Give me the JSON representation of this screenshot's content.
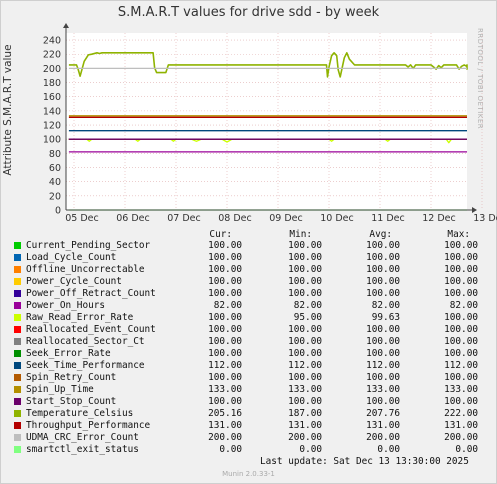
{
  "title": "S.M.A.R.T values for drive sdd - by week",
  "vertical_label": "Attribute S.M.A.R.T value",
  "side_label": "RRDTOOL / TOBI OETIKER",
  "legend_headers": {
    "cur": "Cur:",
    "min": "Min:",
    "avg": "Avg:",
    "max": "Max:"
  },
  "last_update": "Last update:  Sat Dec 13 13:30:00 2025",
  "footer": "Munin 2.0.33-1",
  "legend": [
    {
      "name": "Current_Pending_Sector",
      "color": "#00cc00",
      "cur": "100.00",
      "min": "100.00",
      "avg": "100.00",
      "max": "100.00"
    },
    {
      "name": "Load_Cycle_Count",
      "color": "#0066b3",
      "cur": "100.00",
      "min": "100.00",
      "avg": "100.00",
      "max": "100.00"
    },
    {
      "name": "Offline_Uncorrectable",
      "color": "#ff8000",
      "cur": "100.00",
      "min": "100.00",
      "avg": "100.00",
      "max": "100.00"
    },
    {
      "name": "Power_Cycle_Count",
      "color": "#ffcc00",
      "cur": "100.00",
      "min": "100.00",
      "avg": "100.00",
      "max": "100.00"
    },
    {
      "name": "Power_Off_Retract_Count",
      "color": "#330099",
      "cur": "100.00",
      "min": "100.00",
      "avg": "100.00",
      "max": "100.00"
    },
    {
      "name": "Power_On_Hours",
      "color": "#990099",
      "cur": "82.00",
      "min": "82.00",
      "avg": "82.00",
      "max": "82.00"
    },
    {
      "name": "Raw_Read_Error_Rate",
      "color": "#ccff00",
      "cur": "100.00",
      "min": "95.00",
      "avg": "99.63",
      "max": "100.00"
    },
    {
      "name": "Reallocated_Event_Count",
      "color": "#ff0000",
      "cur": "100.00",
      "min": "100.00",
      "avg": "100.00",
      "max": "100.00"
    },
    {
      "name": "Reallocated_Sector_Ct",
      "color": "#808080",
      "cur": "100.00",
      "min": "100.00",
      "avg": "100.00",
      "max": "100.00"
    },
    {
      "name": "Seek_Error_Rate",
      "color": "#008f00",
      "cur": "100.00",
      "min": "100.00",
      "avg": "100.00",
      "max": "100.00"
    },
    {
      "name": "Seek_Time_Performance",
      "color": "#00487d",
      "cur": "112.00",
      "min": "112.00",
      "avg": "112.00",
      "max": "112.00"
    },
    {
      "name": "Spin_Retry_Count",
      "color": "#b35a00",
      "cur": "100.00",
      "min": "100.00",
      "avg": "100.00",
      "max": "100.00"
    },
    {
      "name": "Spin_Up_Time",
      "color": "#b38f00",
      "cur": "133.00",
      "min": "133.00",
      "avg": "133.00",
      "max": "133.00"
    },
    {
      "name": "Start_Stop_Count",
      "color": "#6b006b",
      "cur": "100.00",
      "min": "100.00",
      "avg": "100.00",
      "max": "100.00"
    },
    {
      "name": "Temperature_Celsius",
      "color": "#8fb300",
      "cur": "205.16",
      "min": "187.00",
      "avg": "207.76",
      "max": "222.00"
    },
    {
      "name": "Throughput_Performance",
      "color": "#b30000",
      "cur": "131.00",
      "min": "131.00",
      "avg": "131.00",
      "max": "131.00"
    },
    {
      "name": "UDMA_CRC_Error_Count",
      "color": "#bebebe",
      "cur": "200.00",
      "min": "200.00",
      "avg": "200.00",
      "max": "200.00"
    },
    {
      "name": "smartctl_exit_status",
      "color": "#80ff80",
      "cur": "0.00",
      "min": "0.00",
      "avg": "0.00",
      "max": "0.00"
    }
  ],
  "chart_data": {
    "type": "line",
    "title": "S.M.A.R.T values for drive sdd - by week",
    "ylabel": "Attribute S.M.A.R.T value",
    "xlabel": "",
    "ylim": [
      0,
      250
    ],
    "yticks": [
      0,
      20,
      40,
      60,
      80,
      100,
      120,
      140,
      160,
      180,
      200,
      220,
      240
    ],
    "xlim": [
      0,
      8.6
    ],
    "xticks": [
      {
        "v": 0.0,
        "label": "05 Dec"
      },
      {
        "v": 1.0,
        "label": "06 Dec"
      },
      {
        "v": 2.0,
        "label": "07 Dec"
      },
      {
        "v": 3.0,
        "label": "08 Dec"
      },
      {
        "v": 4.0,
        "label": "09 Dec"
      },
      {
        "v": 5.0,
        "label": "10 Dec"
      },
      {
        "v": 6.0,
        "label": "11 Dec"
      },
      {
        "v": 7.0,
        "label": "12 Dec"
      },
      {
        "v": 8.0,
        "label": "13 Dec"
      }
    ],
    "grid": true,
    "series": [
      {
        "name": "Current_Pending_Sector",
        "color": "#00cc00",
        "x": [
          -0.1,
          8.55
        ],
        "y": [
          100,
          100
        ]
      },
      {
        "name": "Load_Cycle_Count",
        "color": "#0066b3",
        "x": [
          -0.1,
          8.55
        ],
        "y": [
          100,
          100
        ]
      },
      {
        "name": "Offline_Uncorrectable",
        "color": "#ff8000",
        "x": [
          -0.1,
          8.55
        ],
        "y": [
          100,
          100
        ]
      },
      {
        "name": "Power_Cycle_Count",
        "color": "#ffcc00",
        "x": [
          -0.1,
          8.55
        ],
        "y": [
          100,
          100
        ]
      },
      {
        "name": "Power_Off_Retract_Count",
        "color": "#330099",
        "x": [
          -0.1,
          8.55
        ],
        "y": [
          100,
          100
        ]
      },
      {
        "name": "Power_On_Hours",
        "color": "#990099",
        "x": [
          -0.1,
          8.55
        ],
        "y": [
          82,
          82
        ]
      },
      {
        "name": "Raw_Read_Error_Rate",
        "color": "#ccff00",
        "x": [
          -0.1,
          0.25,
          0.3,
          0.35,
          0.4,
          1.2,
          1.25,
          1.3,
          1.35,
          1.9,
          1.95,
          2.0,
          2.3,
          2.4,
          2.5,
          2.9,
          3.0,
          3.1,
          3.2,
          5.0,
          5.05,
          5.1,
          6.1,
          6.15,
          6.2,
          7.3,
          7.35,
          7.4,
          7.45,
          8.55
        ],
        "y": [
          100,
          100,
          97,
          100,
          100,
          100,
          97,
          100,
          100,
          100,
          97,
          100,
          100,
          97,
          100,
          100,
          96,
          100,
          100,
          100,
          97,
          100,
          100,
          97,
          100,
          100,
          95,
          100,
          100,
          100
        ]
      },
      {
        "name": "Reallocated_Event_Count",
        "color": "#ff0000",
        "x": [
          -0.1,
          8.55
        ],
        "y": [
          100,
          100
        ]
      },
      {
        "name": "Reallocated_Sector_Ct",
        "color": "#808080",
        "x": [
          -0.1,
          8.55
        ],
        "y": [
          100,
          100
        ]
      },
      {
        "name": "Seek_Error_Rate",
        "color": "#008f00",
        "x": [
          -0.1,
          8.55
        ],
        "y": [
          100,
          100
        ]
      },
      {
        "name": "Seek_Time_Performance",
        "color": "#00487d",
        "x": [
          -0.1,
          8.55
        ],
        "y": [
          112,
          112
        ]
      },
      {
        "name": "Spin_Retry_Count",
        "color": "#b35a00",
        "x": [
          -0.1,
          8.55
        ],
        "y": [
          100,
          100
        ]
      },
      {
        "name": "Spin_Up_Time",
        "color": "#b38f00",
        "x": [
          -0.1,
          8.55
        ],
        "y": [
          133,
          133
        ]
      },
      {
        "name": "Start_Stop_Count",
        "color": "#6b006b",
        "x": [
          -0.1,
          8.55
        ],
        "y": [
          100,
          100
        ]
      },
      {
        "name": "Temperature_Celsius",
        "color": "#8fb300",
        "x": [
          -0.1,
          0.05,
          0.08,
          0.12,
          0.2,
          0.28,
          0.35,
          0.45,
          0.5,
          0.55,
          0.6,
          0.7,
          1.55,
          1.58,
          1.62,
          1.65,
          1.75,
          1.8,
          1.85,
          4.95,
          4.97,
          5.0,
          5.05,
          5.1,
          5.15,
          5.18,
          5.22,
          5.3,
          5.35,
          5.4,
          5.5,
          6.5,
          6.55,
          6.6,
          6.65,
          6.7,
          7.0,
          7.05,
          7.1,
          7.15,
          7.2,
          7.25,
          7.3,
          7.5,
          7.55,
          7.6,
          7.65,
          7.7,
          8.0,
          8.1,
          8.15,
          8.3,
          8.35,
          8.4,
          8.55
        ],
        "y": [
          205,
          205,
          199,
          189,
          210,
          219,
          220,
          222,
          221,
          222,
          222,
          222,
          222,
          201,
          194,
          194,
          194,
          194,
          205,
          205,
          188,
          202,
          218,
          222,
          218,
          198,
          188,
          215,
          222,
          213,
          205,
          205,
          202,
          205,
          200,
          205,
          205,
          202,
          199,
          204,
          201,
          205,
          205,
          205,
          199,
          203,
          205,
          203,
          205,
          202,
          205,
          199,
          205,
          205,
          205
        ]
      },
      {
        "name": "Throughput_Performance",
        "color": "#b30000",
        "x": [
          -0.1,
          8.55
        ],
        "y": [
          131,
          131
        ]
      },
      {
        "name": "UDMA_CRC_Error_Count",
        "color": "#bebebe",
        "x": [
          -0.1,
          8.55
        ],
        "y": [
          200,
          200
        ]
      },
      {
        "name": "smartctl_exit_status",
        "color": "#80ff80",
        "x": [
          -0.1,
          8.55
        ],
        "y": [
          0,
          0
        ]
      }
    ]
  }
}
